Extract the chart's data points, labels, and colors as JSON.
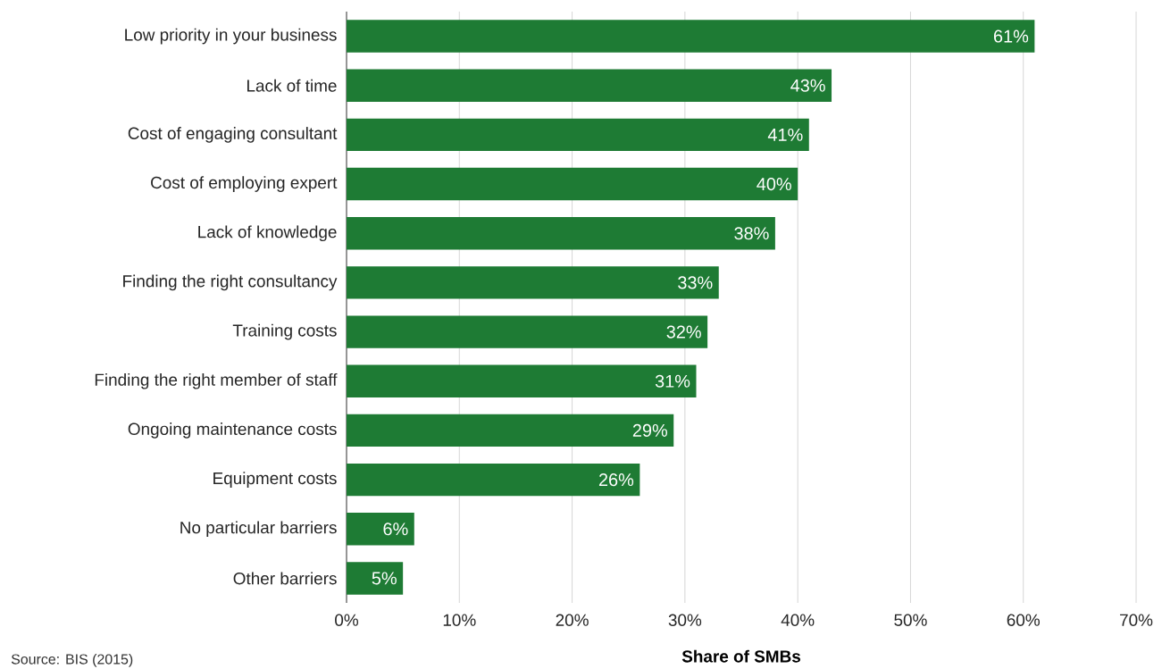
{
  "chart_data": {
    "type": "bar",
    "orientation": "horizontal",
    "categories": [
      "Low priority in your business",
      "Lack of time",
      "Cost of engaging consultant",
      "Cost of employing expert",
      "Lack of knowledge",
      "Finding the right consultancy",
      "Training costs",
      "Finding the right member of staff",
      "Ongoing maintenance costs",
      "Equipment costs",
      "No particular barriers",
      "Other barriers"
    ],
    "values": [
      61,
      43,
      41,
      40,
      38,
      33,
      32,
      31,
      29,
      26,
      6,
      5
    ],
    "value_labels": [
      "61%",
      "43%",
      "41%",
      "40%",
      "38%",
      "33%",
      "32%",
      "31%",
      "29%",
      "26%",
      "6%",
      "5%"
    ],
    "color": "#1e7b34",
    "xlabel": "Share of SMBs",
    "xlim": [
      0,
      70
    ],
    "xticks": [
      {
        "value": 0,
        "label": "0%"
      },
      {
        "value": 10,
        "label": "10%"
      },
      {
        "value": 20,
        "label": "20%"
      },
      {
        "value": 30,
        "label": "30%"
      },
      {
        "value": 40,
        "label": "40%"
      },
      {
        "value": 50,
        "label": "50%"
      },
      {
        "value": 60,
        "label": "60%"
      },
      {
        "value": 70,
        "label": "70%"
      }
    ],
    "grid": "x",
    "annotations": [
      "Source: BIS (2015)"
    ]
  }
}
